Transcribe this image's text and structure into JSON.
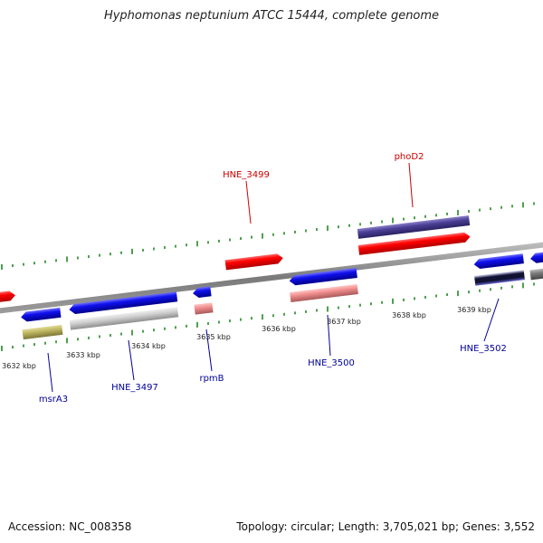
{
  "title": "Hyphomonas neptunium ATCC 15444, complete genome",
  "footer": {
    "accession": "Accession: NC_008358",
    "topology": "Topology: circular; Length: 3,705,021 bp; Genes: 3,552"
  },
  "colors": {
    "tick": "#228822",
    "backbone": "#8a8a8a",
    "label_top": "#cc0000",
    "label_bottom": "#000099"
  },
  "kbp_labels": [
    "3632 kbp",
    "3633 kbp",
    "3634 kbp",
    "3635 kbp",
    "3636 kbp",
    "3637 kbp",
    "3638 kbp",
    "3639 kbp"
  ],
  "gene_labels": {
    "top": [
      "HNE_3499",
      "phoD2"
    ],
    "bottom": [
      "msrA3",
      "HNE_3497",
      "rpmB",
      "HNE_3500",
      "HNE_3502"
    ]
  },
  "features": [
    {
      "name": "feature-red-left-edge",
      "color": "red"
    },
    {
      "name": "feature-blue-msra3",
      "color": "blue"
    },
    {
      "name": "feature-olive-msra3",
      "color": "olive"
    },
    {
      "name": "feature-blue-hne3497",
      "color": "blue"
    },
    {
      "name": "feature-grey-hne3497",
      "color": "lightgrey"
    },
    {
      "name": "feature-blue-rpmb",
      "color": "blue"
    },
    {
      "name": "feature-salmon-rpmb",
      "color": "salmon"
    },
    {
      "name": "feature-red-hne3499",
      "color": "red"
    },
    {
      "name": "feature-blue-hne3500",
      "color": "blue"
    },
    {
      "name": "feature-salmon-hne3500",
      "color": "salmon"
    },
    {
      "name": "feature-purple-phod2",
      "color": "purple"
    },
    {
      "name": "feature-red-phod2",
      "color": "red"
    },
    {
      "name": "feature-blue-hne3502",
      "color": "blue"
    },
    {
      "name": "feature-stripe-hne3502",
      "color": "black"
    },
    {
      "name": "feature-blue-right-edge",
      "color": "blue"
    },
    {
      "name": "feature-grey-right-edge",
      "color": "grey"
    }
  ]
}
